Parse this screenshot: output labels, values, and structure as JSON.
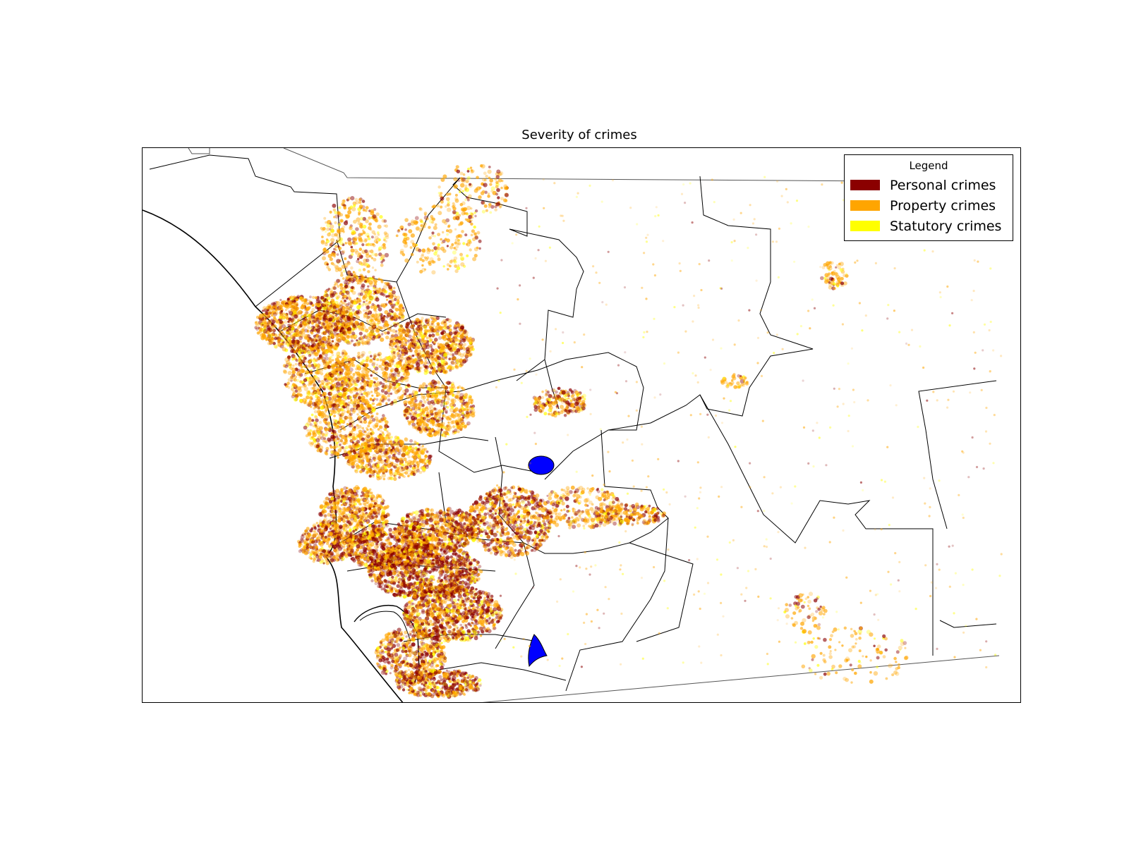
{
  "title": "Severity of crimes",
  "legend": {
    "title": "Legend",
    "entries": [
      {
        "label": "Personal crimes",
        "color": "#8b0000"
      },
      {
        "label": "Property crimes",
        "color": "#ffa500"
      },
      {
        "label": "Statutory crimes",
        "color": "#ffff00"
      }
    ]
  },
  "colors": {
    "water_bodies": "#0000ff",
    "boundaries": "#000000"
  }
}
